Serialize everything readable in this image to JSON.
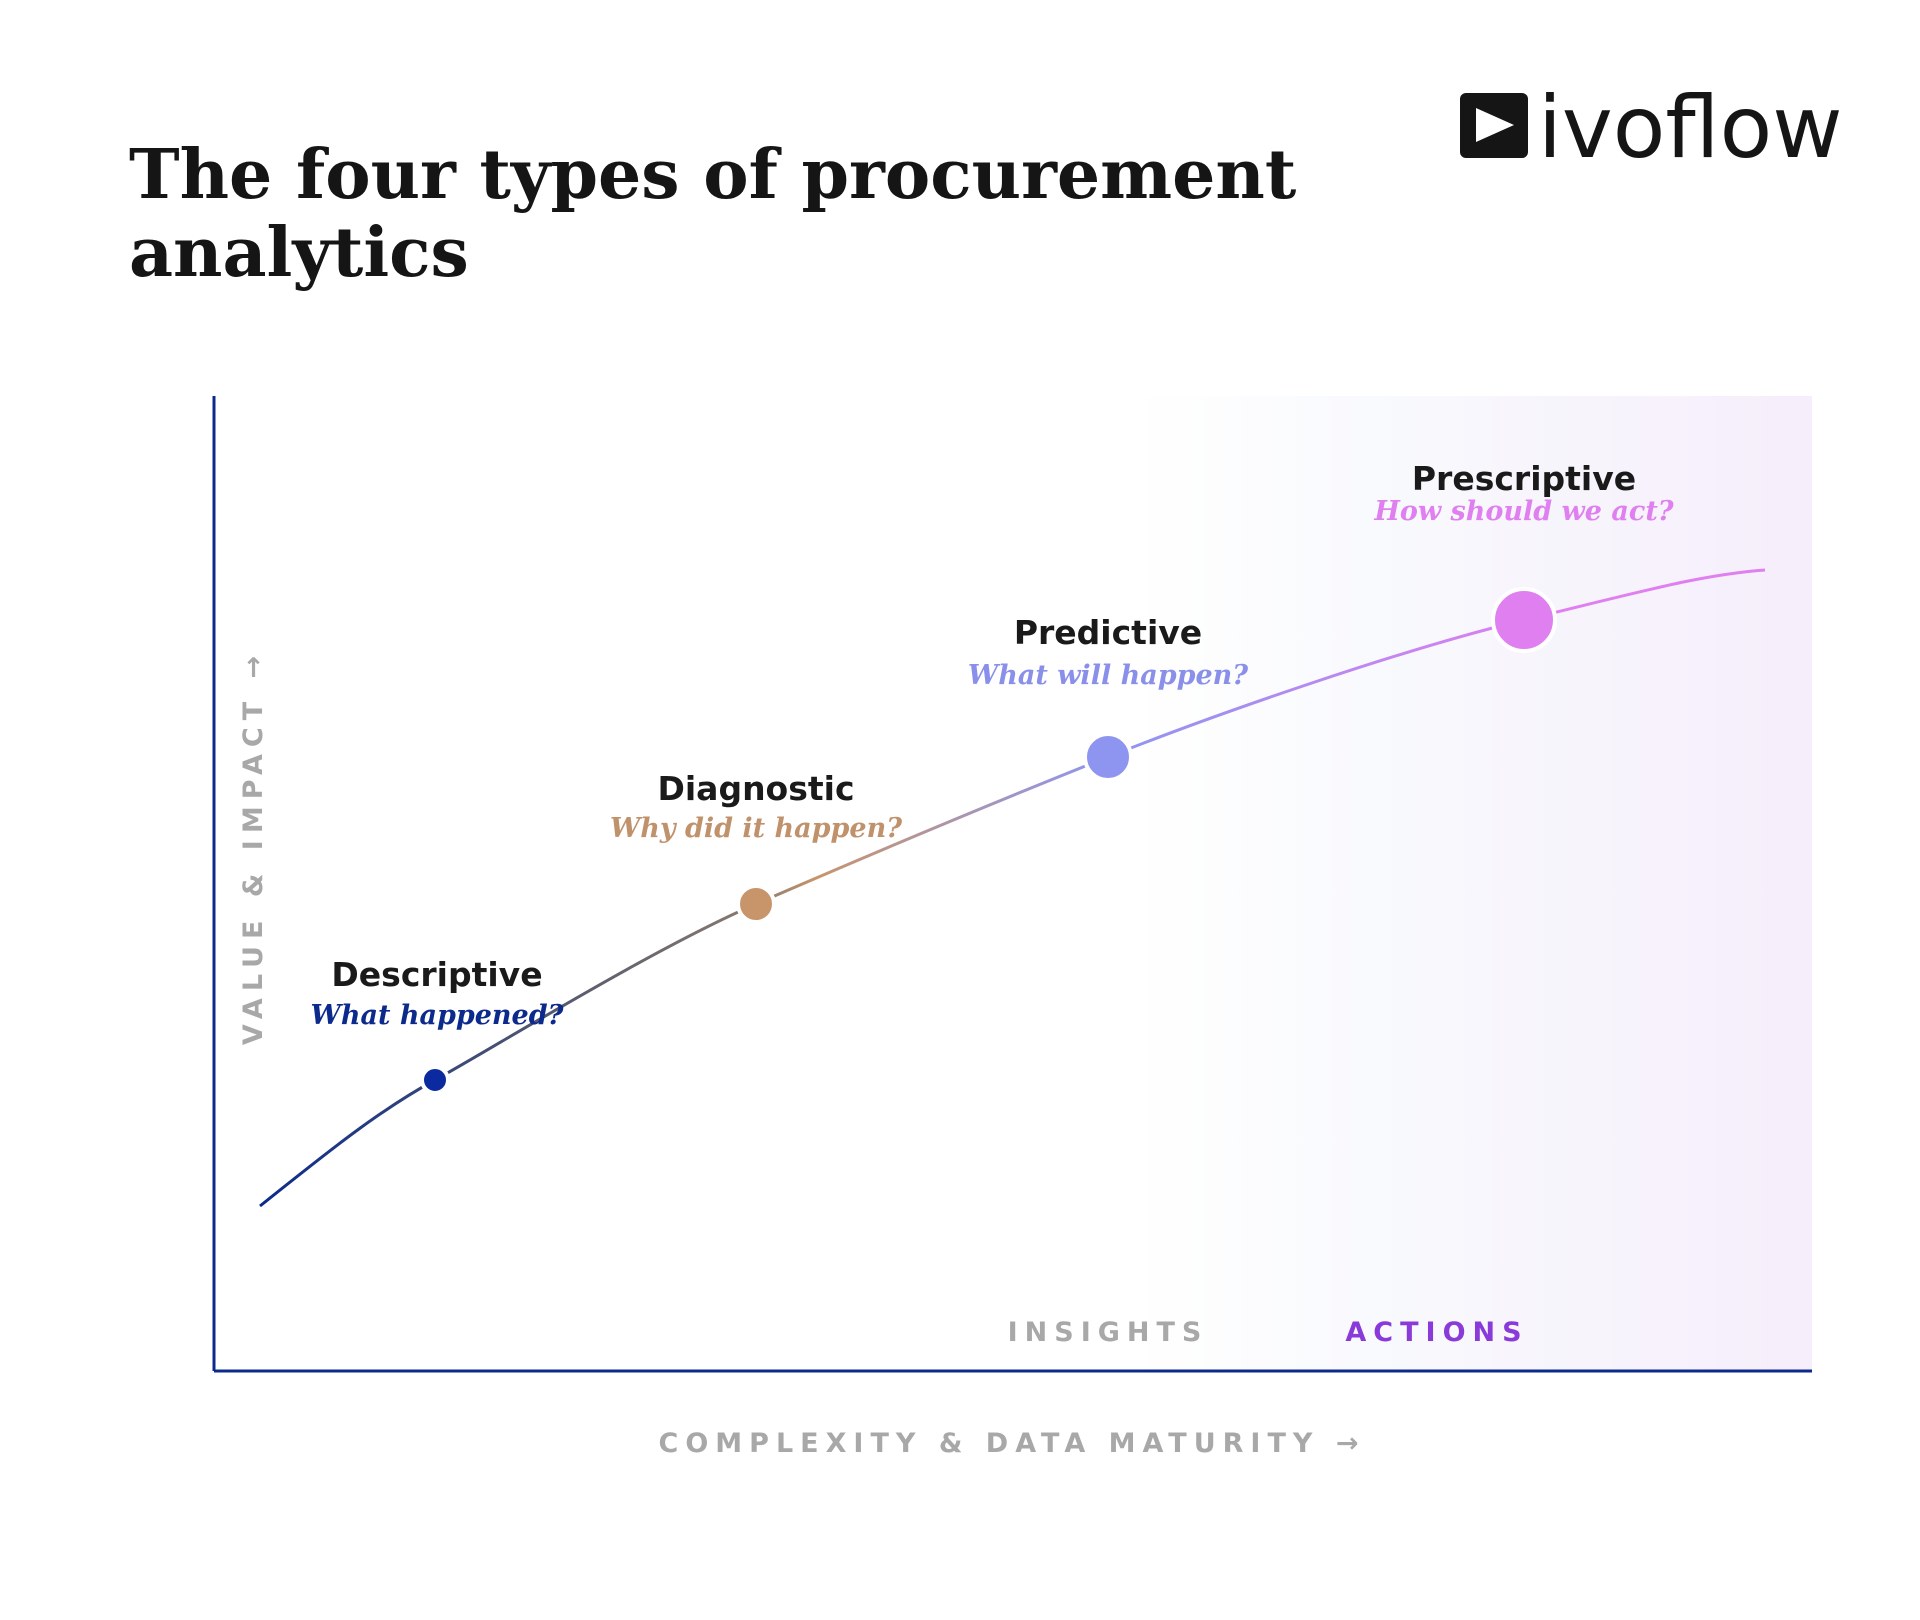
{
  "header": {
    "title_line1": "The four types of procurement",
    "title_line2": "analytics",
    "logo": "ivoflow"
  },
  "axes": {
    "y_label": "VALUE & IMPACT →",
    "x_label": "COMPLEXITY & DATA MATURITY →"
  },
  "zones": [
    "INSIGHTS",
    "ACTIONS"
  ],
  "stages": [
    {
      "name": "Descriptive",
      "question": "What happened?"
    },
    {
      "name": "Diagnostic",
      "question": "Why did it happen?"
    },
    {
      "name": "Predictive",
      "question": "What will happen?"
    },
    {
      "name": "Prescriptive",
      "question": "How should we act?"
    }
  ]
}
